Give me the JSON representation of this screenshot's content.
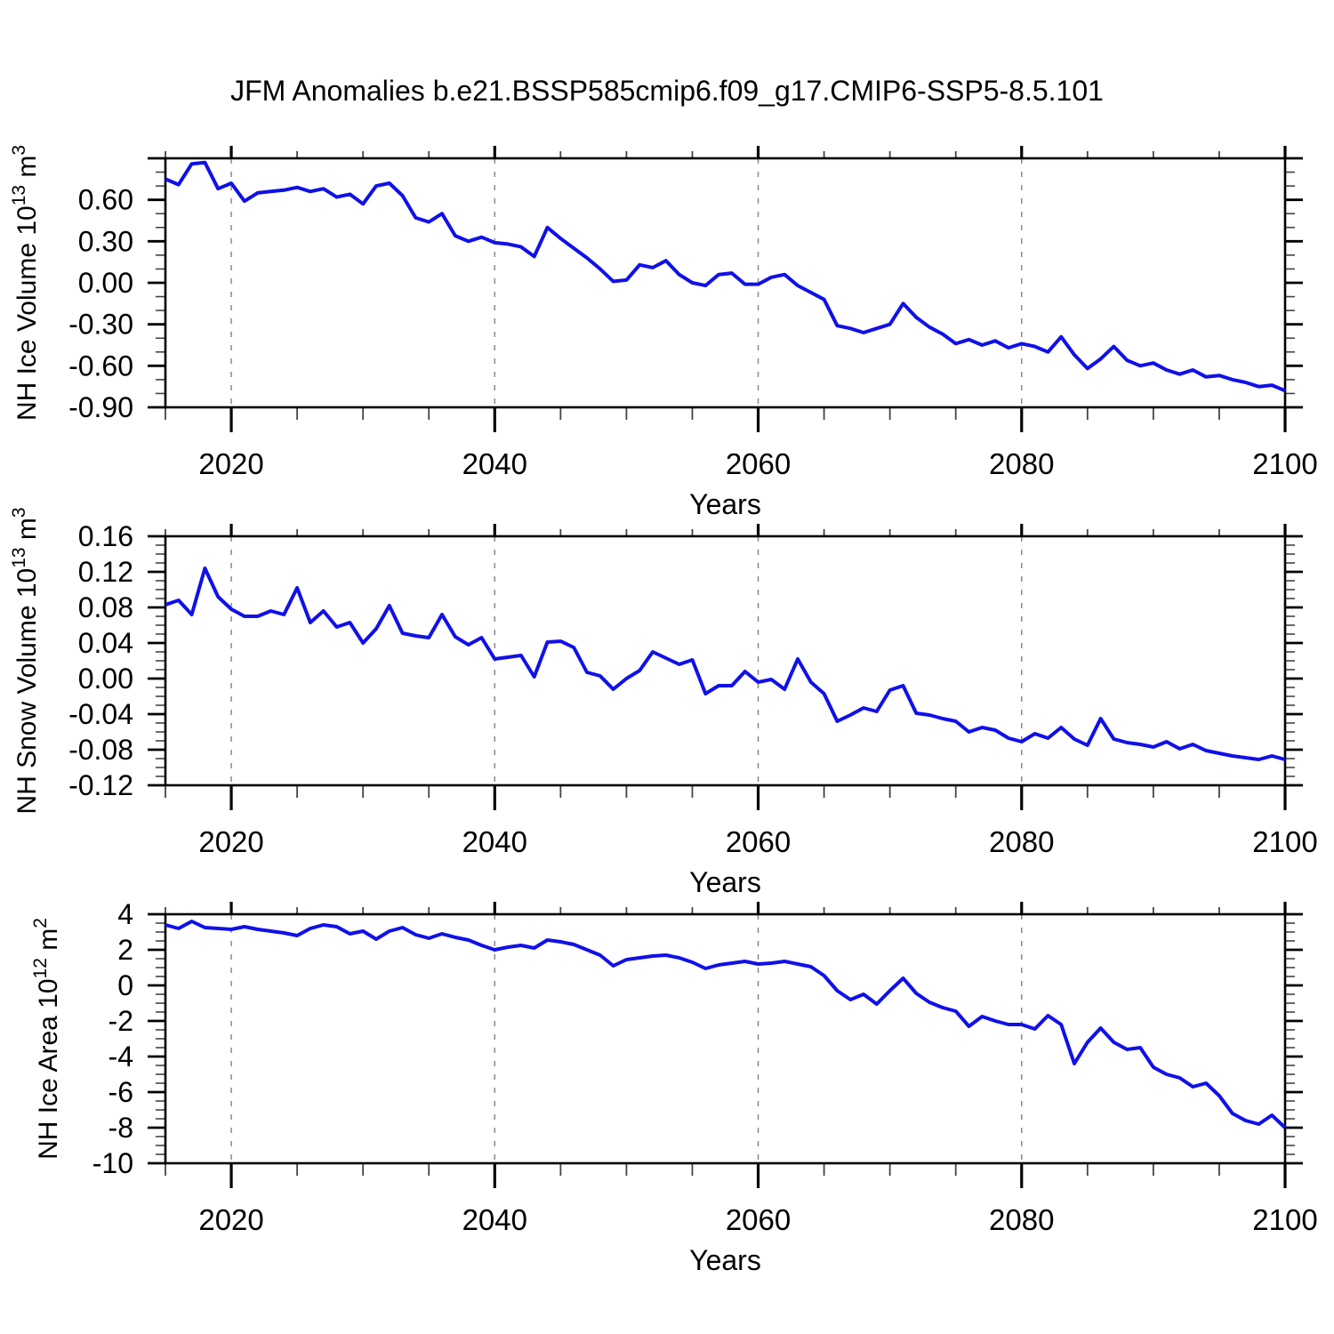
{
  "page_title": "JFM Anomalies b.e21.BSSP585cmip6.f09_g17.CMIP6-SSP5-8.5.101",
  "figure": {
    "background": "#ffffff",
    "line_color": "#1010e8",
    "grid_color": "#8a8a8a",
    "frame_color": "#000000",
    "minor_tick_color": "#444444"
  },
  "xaxis": {
    "label": "Years",
    "lim": [
      2015,
      2100
    ],
    "major_ticks": [
      2020,
      2040,
      2060,
      2080,
      2100
    ],
    "major_tick_labels": [
      "2020",
      "2040",
      "2060",
      "2080",
      "2100"
    ],
    "minor_step": 5,
    "grid_years": [
      2020,
      2040,
      2060,
      2080
    ]
  },
  "chart_data": [
    {
      "type": "line",
      "name": "nh-ice-volume",
      "ylabel": "NH Ice Volume 10^13 m^3",
      "ylabel_parts": [
        {
          "t": "NH Ice Volume 10"
        },
        {
          "t": "13",
          "sup": true
        },
        {
          "t": " m"
        },
        {
          "t": "3",
          "sup": true
        }
      ],
      "ylim": [
        -0.9,
        0.9
      ],
      "yminor_step": 0.1,
      "yticks": [
        {
          "v": 0.9,
          "label": ""
        },
        {
          "v": 0.6,
          "label": "0.60"
        },
        {
          "v": 0.3,
          "label": "0.30"
        },
        {
          "v": 0.0,
          "label": "0.00"
        },
        {
          "v": -0.3,
          "label": "-0.30"
        },
        {
          "v": -0.6,
          "label": "-0.60"
        },
        {
          "v": -0.9,
          "label": "-0.90"
        }
      ],
      "x_start": 2015,
      "x_step": 1,
      "values": [
        0.75,
        0.71,
        0.86,
        0.87,
        0.68,
        0.72,
        0.59,
        0.65,
        0.66,
        0.67,
        0.69,
        0.66,
        0.68,
        0.62,
        0.64,
        0.57,
        0.7,
        0.72,
        0.63,
        0.47,
        0.44,
        0.5,
        0.34,
        0.3,
        0.33,
        0.29,
        0.28,
        0.26,
        0.19,
        0.4,
        0.32,
        0.25,
        0.18,
        0.1,
        0.01,
        0.02,
        0.13,
        0.11,
        0.16,
        0.06,
        0.0,
        -0.02,
        0.06,
        0.07,
        -0.01,
        -0.01,
        0.04,
        0.06,
        -0.02,
        -0.07,
        -0.12,
        -0.31,
        -0.33,
        -0.36,
        -0.33,
        -0.3,
        -0.15,
        -0.25,
        -0.32,
        -0.37,
        -0.44,
        -0.41,
        -0.45,
        -0.42,
        -0.47,
        -0.44,
        -0.46,
        -0.5,
        -0.39,
        -0.52,
        -0.62,
        -0.55,
        -0.46,
        -0.56,
        -0.6,
        -0.58,
        -0.63,
        -0.66,
        -0.63,
        -0.68,
        -0.67,
        -0.7,
        -0.72,
        -0.75,
        -0.74,
        -0.78
      ]
    },
    {
      "type": "line",
      "name": "nh-snow-volume",
      "ylabel": "NH Snow Volume 10^13 m^3",
      "ylabel_parts": [
        {
          "t": "NH Snow Volume 10"
        },
        {
          "t": "13",
          "sup": true
        },
        {
          "t": " m"
        },
        {
          "t": "3",
          "sup": true
        }
      ],
      "ylim": [
        -0.12,
        0.16
      ],
      "yminor_step": 0.01,
      "yticks": [
        {
          "v": 0.16,
          "label": "0.16"
        },
        {
          "v": 0.12,
          "label": "0.12"
        },
        {
          "v": 0.08,
          "label": "0.08"
        },
        {
          "v": 0.04,
          "label": "0.04"
        },
        {
          "v": 0.0,
          "label": "0.00"
        },
        {
          "v": -0.04,
          "label": "-0.04"
        },
        {
          "v": -0.08,
          "label": "-0.08"
        },
        {
          "v": -0.12,
          "label": "-0.12"
        }
      ],
      "x_start": 2015,
      "x_step": 1,
      "values": [
        0.083,
        0.088,
        0.072,
        0.124,
        0.092,
        0.078,
        0.07,
        0.07,
        0.076,
        0.072,
        0.102,
        0.063,
        0.076,
        0.058,
        0.063,
        0.04,
        0.056,
        0.082,
        0.051,
        0.048,
        0.046,
        0.072,
        0.047,
        0.038,
        0.046,
        0.022,
        0.024,
        0.026,
        0.002,
        0.041,
        0.042,
        0.035,
        0.007,
        0.003,
        -0.012,
        0.0,
        0.009,
        0.03,
        0.023,
        0.016,
        0.021,
        -0.017,
        -0.008,
        -0.008,
        0.008,
        -0.004,
        -0.001,
        -0.012,
        0.022,
        -0.004,
        -0.017,
        -0.048,
        -0.041,
        -0.033,
        -0.037,
        -0.013,
        -0.008,
        -0.039,
        -0.041,
        -0.045,
        -0.048,
        -0.06,
        -0.055,
        -0.058,
        -0.067,
        -0.071,
        -0.062,
        -0.067,
        -0.055,
        -0.068,
        -0.075,
        -0.045,
        -0.068,
        -0.072,
        -0.074,
        -0.077,
        -0.071,
        -0.079,
        -0.074,
        -0.081,
        -0.084,
        -0.087,
        -0.089,
        -0.091,
        -0.087,
        -0.091
      ]
    },
    {
      "type": "line",
      "name": "nh-ice-area",
      "ylabel": "NH Ice Area 10^12 m^2",
      "ylabel_parts": [
        {
          "t": "NH Ice Area 10"
        },
        {
          "t": "12",
          "sup": true
        },
        {
          "t": " m"
        },
        {
          "t": "2",
          "sup": true
        }
      ],
      "ylim": [
        -10,
        4
      ],
      "yminor_step": 0.5,
      "yticks": [
        {
          "v": 4,
          "label": "4"
        },
        {
          "v": 2,
          "label": "2"
        },
        {
          "v": 0,
          "label": "0"
        },
        {
          "v": -2,
          "label": "-2"
        },
        {
          "v": -4,
          "label": "-4"
        },
        {
          "v": -6,
          "label": "-6"
        },
        {
          "v": -8,
          "label": "-8"
        },
        {
          "v": -10,
          "label": "-10"
        }
      ],
      "x_start": 2015,
      "x_step": 1,
      "values": [
        3.4,
        3.2,
        3.6,
        3.25,
        3.2,
        3.15,
        3.3,
        3.15,
        3.05,
        2.95,
        2.8,
        3.2,
        3.4,
        3.3,
        2.9,
        3.05,
        2.6,
        3.05,
        3.25,
        2.85,
        2.65,
        2.9,
        2.7,
        2.55,
        2.25,
        2.0,
        2.15,
        2.25,
        2.1,
        2.55,
        2.45,
        2.3,
        2.0,
        1.7,
        1.1,
        1.45,
        1.55,
        1.65,
        1.7,
        1.55,
        1.3,
        0.95,
        1.15,
        1.25,
        1.35,
        1.2,
        1.25,
        1.35,
        1.2,
        1.05,
        0.55,
        -0.3,
        -0.8,
        -0.5,
        -1.05,
        -0.3,
        0.4,
        -0.45,
        -0.95,
        -1.25,
        -1.45,
        -2.3,
        -1.75,
        -2.0,
        -2.2,
        -2.2,
        -2.45,
        -1.7,
        -2.2,
        -4.4,
        -3.2,
        -2.4,
        -3.2,
        -3.6,
        -3.5,
        -4.6,
        -5.0,
        -5.2,
        -5.7,
        -5.5,
        -6.2,
        -7.2,
        -7.6,
        -7.8,
        -7.3,
        -8.0
      ]
    }
  ]
}
